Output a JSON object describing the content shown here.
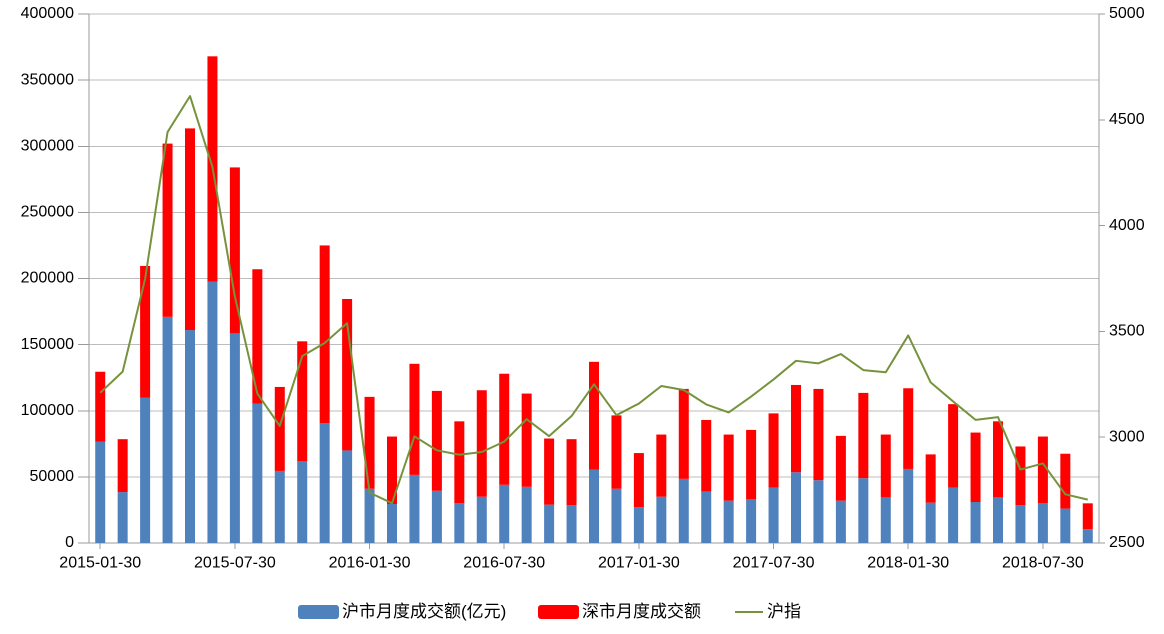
{
  "chart_data": {
    "type": "combo-stacked-bar-line",
    "title": "",
    "categories": [
      "2015-01",
      "2015-02",
      "2015-03",
      "2015-04",
      "2015-05",
      "2015-06",
      "2015-07",
      "2015-08",
      "2015-09",
      "2015-10",
      "2015-11",
      "2015-12",
      "2016-01",
      "2016-02",
      "2016-03",
      "2016-04",
      "2016-05",
      "2016-06",
      "2016-07",
      "2016-08",
      "2016-09",
      "2016-10",
      "2016-11",
      "2016-12",
      "2017-01",
      "2017-02",
      "2017-03",
      "2017-04",
      "2017-05",
      "2017-06",
      "2017-07",
      "2017-08",
      "2017-09",
      "2017-10",
      "2017-11",
      "2017-12",
      "2018-01",
      "2018-02",
      "2018-03",
      "2018-04",
      "2018-05",
      "2018-06",
      "2018-07",
      "2018-08",
      "2018-09"
    ],
    "x_tick_labels": [
      "2015-01-30",
      "2015-07-30",
      "2016-01-30",
      "2016-07-30",
      "2017-01-30",
      "2017-07-30",
      "2018-01-30",
      "2018-07-30"
    ],
    "x_label_interval": 6,
    "series": [
      {
        "name": "沪市月度成交额(亿元)",
        "type": "bar",
        "stack": "turnover",
        "axis": "left",
        "color": "#4F81BD",
        "values": [
          76500,
          38500,
          110000,
          171000,
          161000,
          197500,
          158500,
          105500,
          54500,
          62000,
          90500,
          70000,
          41000,
          29500,
          51500,
          39500,
          30000,
          35000,
          44000,
          42500,
          29000,
          28500,
          55500,
          41000,
          27000,
          35000,
          48500,
          39000,
          32000,
          33000,
          42000,
          53500,
          47500,
          32000,
          49000,
          34500,
          56000,
          30500,
          42000,
          31000,
          34500,
          28500,
          30000,
          26000,
          10500
        ]
      },
      {
        "name": "深市月度成交额",
        "type": "bar",
        "stack": "turnover",
        "axis": "left",
        "color": "#FF0000",
        "values": [
          53000,
          40000,
          99500,
          131000,
          152500,
          170500,
          125500,
          101500,
          63500,
          90500,
          134500,
          114500,
          69500,
          51000,
          84000,
          75500,
          62000,
          80500,
          84000,
          70500,
          50000,
          50000,
          81500,
          55500,
          41000,
          47000,
          68000,
          54000,
          50000,
          52500,
          56000,
          66000,
          69000,
          49000,
          64500,
          47500,
          61000,
          36500,
          63000,
          52500,
          57500,
          44500,
          50500,
          41500,
          19500
        ]
      },
      {
        "name": "沪指",
        "type": "line",
        "axis": "right",
        "color": "#76933C",
        "values": [
          3210,
          3310,
          3748,
          4442,
          4612,
          4277,
          3664,
          3206,
          3053,
          3383,
          3445,
          3539,
          2738,
          2688,
          3004,
          2938,
          2917,
          2930,
          2979,
          3085,
          3005,
          3100,
          3250,
          3104,
          3159,
          3242,
          3223,
          3155,
          3117,
          3192,
          3273,
          3361,
          3349,
          3393,
          3317,
          3307,
          3481,
          3259,
          3169,
          3082,
          3095,
          2847,
          2876,
          2730,
          2705
        ]
      }
    ],
    "y_axis_left": {
      "min": 0,
      "max": 400000,
      "step": 50000
    },
    "y_axis_right": {
      "min": 2500,
      "max": 5000,
      "step": 500
    },
    "grid": "horizontal",
    "legend_position": "bottom",
    "colors": {
      "grid_line": "#BDBDBD",
      "axis_line": "#9B9B9B",
      "tick_text": "#000000",
      "background": "#FFFFFF"
    }
  }
}
